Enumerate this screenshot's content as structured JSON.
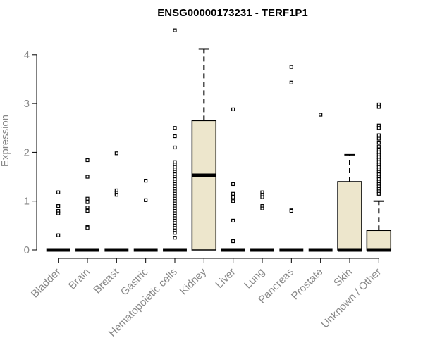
{
  "chart_data": {
    "type": "box",
    "title": "ENSG00000173231 - TERF1P1",
    "xlabel": "",
    "ylabel": "Expression",
    "ylim": [
      0,
      4.5
    ],
    "yticks": [
      0,
      1,
      2,
      3,
      4
    ],
    "box_fill": "#ede6cc",
    "outline_color": "#000000",
    "categories": [
      "Bladder",
      "Brain",
      "Breast",
      "Gastric",
      "Hematopoietic cells",
      "Kidney",
      "Liver",
      "Lung",
      "Pancreas",
      "Prostate",
      "Skin",
      "Unknown / Other"
    ],
    "boxes": [
      {
        "category": "Bladder",
        "q1": 0,
        "median": 0,
        "q3": 0,
        "whisker_low": 0,
        "whisker_high": 0,
        "outliers": [
          1.18,
          0.9,
          0.8,
          0.75,
          0.3
        ]
      },
      {
        "category": "Brain",
        "q1": 0,
        "median": 0,
        "q3": 0,
        "whisker_low": 0,
        "whisker_high": 0,
        "outliers": [
          1.84,
          1.5,
          1.05,
          0.98,
          0.87,
          0.8,
          0.47,
          0.45
        ]
      },
      {
        "category": "Breast",
        "q1": 0,
        "median": 0,
        "q3": 0,
        "whisker_low": 0,
        "whisker_high": 0,
        "outliers": [
          1.98,
          1.22,
          1.17,
          1.13
        ]
      },
      {
        "category": "Gastric",
        "q1": 0,
        "median": 0,
        "q3": 0,
        "whisker_low": 0,
        "whisker_high": 0,
        "outliers": [
          1.42,
          1.02
        ]
      },
      {
        "category": "Hematopoietic cells",
        "q1": 0,
        "median": 0,
        "q3": 0,
        "whisker_low": 0,
        "whisker_high": 0,
        "outliers": [
          4.5,
          2.5,
          2.33,
          2.1,
          1.8,
          1.75,
          1.7,
          1.65,
          1.6,
          1.55,
          1.5,
          1.45,
          1.4,
          1.35,
          1.3,
          1.25,
          1.2,
          1.15,
          1.1,
          1.05,
          1.0,
          0.95,
          0.9,
          0.85,
          0.8,
          0.75,
          0.7,
          0.65,
          0.6,
          0.55,
          0.5,
          0.45,
          0.4,
          0.35,
          0.25
        ]
      },
      {
        "category": "Kidney",
        "q1": 0,
        "median": 1.53,
        "q3": 2.65,
        "whisker_low": 0,
        "whisker_high": 4.12,
        "outliers": []
      },
      {
        "category": "Liver",
        "q1": 0,
        "median": 0,
        "q3": 0,
        "whisker_low": 0,
        "whisker_high": 0,
        "outliers": [
          2.88,
          1.35,
          1.15,
          1.08,
          1.0,
          0.6,
          0.18
        ]
      },
      {
        "category": "Lung",
        "q1": 0,
        "median": 0,
        "q3": 0,
        "whisker_low": 0,
        "whisker_high": 0,
        "outliers": [
          1.18,
          1.13,
          1.08,
          0.9,
          0.85
        ]
      },
      {
        "category": "Pancreas",
        "q1": 0,
        "median": 0,
        "q3": 0,
        "whisker_low": 0,
        "whisker_high": 0,
        "outliers": [
          3.75,
          3.43,
          0.82,
          0.8
        ]
      },
      {
        "category": "Prostate",
        "q1": 0,
        "median": 0,
        "q3": 0,
        "whisker_low": 0,
        "whisker_high": 0,
        "outliers": [
          2.77
        ]
      },
      {
        "category": "Skin",
        "q1": 0,
        "median": 0,
        "q3": 1.4,
        "whisker_low": 0,
        "whisker_high": 1.95,
        "outliers": []
      },
      {
        "category": "Unknown / Other",
        "q1": 0,
        "median": 0,
        "q3": 0.4,
        "whisker_low": 0,
        "whisker_high": 1.0,
        "outliers": [
          2.98,
          2.93,
          2.55,
          2.5,
          2.35,
          2.28,
          2.2,
          2.12,
          2.05,
          2.0,
          1.95,
          1.9,
          1.85,
          1.8,
          1.75,
          1.7,
          1.65,
          1.6,
          1.55,
          1.5,
          1.45,
          1.4,
          1.35,
          1.3,
          1.25,
          1.2,
          1.15
        ]
      }
    ]
  }
}
